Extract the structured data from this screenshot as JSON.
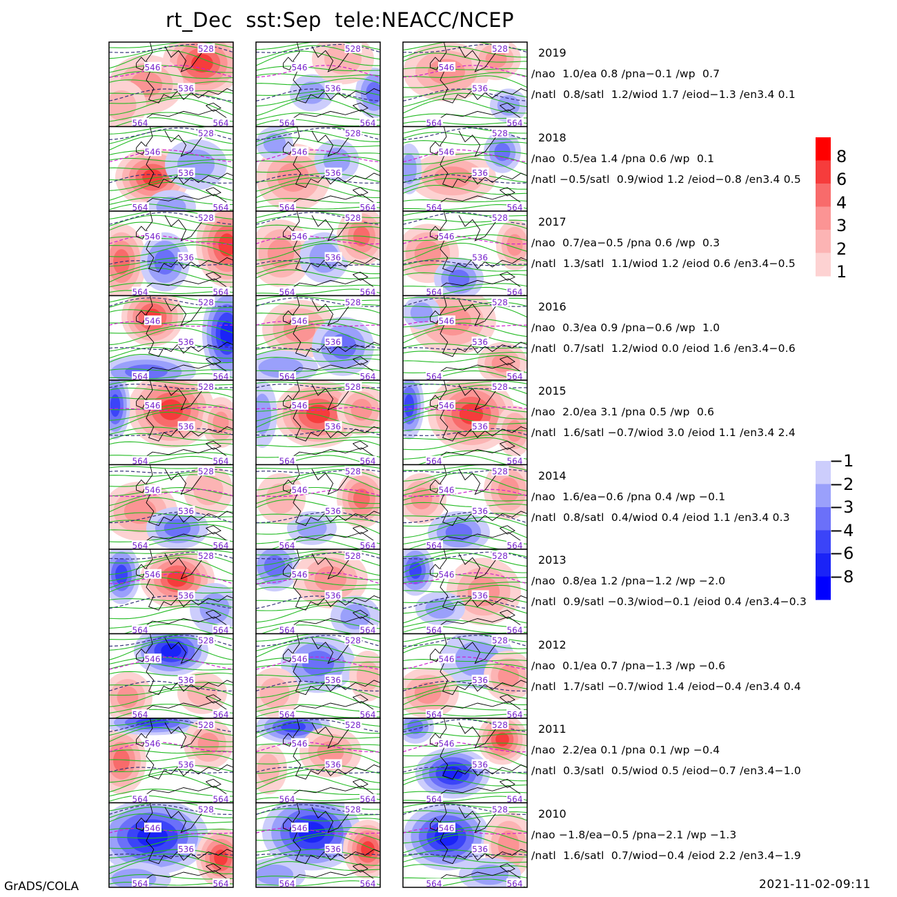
{
  "title": "rt_Dec  sst:Sep  tele:NEACC/NCEP",
  "footer_left": "GrADS/COLA",
  "footer_right": "2021-11-02-09:11",
  "contour_labels": [
    "528",
    "536",
    "546",
    "564"
  ],
  "colors": {
    "pos": [
      "#fdd2d2",
      "#fcb4b4",
      "#fb9494",
      "#f86b6b",
      "#f63c3c",
      "#ff0000"
    ],
    "neg": [
      "#cccdfc",
      "#9aa0fb",
      "#6b70f9",
      "#3b44f8",
      "#1a23f7",
      "#0000ff"
    ],
    "contour_green": "#22bb22",
    "contour_navy": "#333377",
    "contour_magenta": "#cc22cc",
    "coast": "#000000"
  },
  "colorbar": {
    "positive_labels": [
      "8",
      "6",
      "4",
      "3",
      "2",
      "1"
    ],
    "negative_labels": [
      "-1",
      "-2",
      "-3",
      "-4",
      "-6",
      "-8"
    ]
  },
  "rows": [
    {
      "year": "2019",
      "line1": "/nao  1.0/ea 0.8 /pna-0.1 /wp  0.7",
      "line2": "/natl  0.8/satl  1.2/wiod 1.7 /eiod-1.3 /en3.4 0.1"
    },
    {
      "year": "2018",
      "line1": "/nao  0.5/ea 1.4 /pna 0.6 /wp  0.1",
      "line2": "/natl -0.5/satl  0.9/wiod 1.2 /eiod-0.8 /en3.4 0.5"
    },
    {
      "year": "2017",
      "line1": "/nao  0.7/ea-0.5 /pna 0.6 /wp  0.3",
      "line2": "/natl  1.3/satl  1.1/wiod 1.2 /eiod 0.6 /en3.4-0.5"
    },
    {
      "year": "2016",
      "line1": "/nao  0.3/ea 0.9 /pna-0.6 /wp  1.0",
      "line2": "/natl  0.7/satl  1.2/wiod 0.0 /eiod 1.6 /en3.4-0.6"
    },
    {
      "year": "2015",
      "line1": "/nao  2.0/ea 3.1 /pna 0.5 /wp  0.6",
      "line2": "/natl  1.6/satl -0.7/wiod 3.0 /eiod 1.1 /en3.4 2.4"
    },
    {
      "year": "2014",
      "line1": "/nao  1.6/ea-0.6 /pna 0.4 /wp -0.1",
      "line2": "/natl  0.8/satl  0.4/wiod 0.4 /eiod 1.1 /en3.4 0.3"
    },
    {
      "year": "2013",
      "line1": "/nao  0.8/ea 1.2 /pna-1.2 /wp -2.0",
      "line2": "/natl  0.9/satl -0.3/wiod-0.1 /eiod 0.4 /en3.4-0.3"
    },
    {
      "year": "2012",
      "line1": "/nao  0.1/ea 0.7 /pna-1.3 /wp -0.6",
      "line2": "/natl  1.7/satl -0.7/wiod 1.4 /eiod-0.4 /en3.4 0.4"
    },
    {
      "year": "2011",
      "line1": "/nao  2.2/ea 0.1 /pna 0.1 /wp -0.4",
      "line2": "/natl  0.3/satl  0.5/wiod 0.5 /eiod-0.7 /en3.4-1.0"
    },
    {
      "year": "2010",
      "line1": "/nao -1.8/ea-0.5 /pna-2.1 /wp -1.3",
      "line2": "/natl  1.6/satl  0.7/wiod-0.4 /eiod 2.2 /en3.4-1.9"
    }
  ],
  "anomaly_blobs": [
    [
      [
        [
          0.75,
          0.25,
          0.32,
          0.4,
          6
        ],
        [
          0.3,
          0.5,
          0.3,
          0.35,
          3
        ],
        [
          0.1,
          0.75,
          0.2,
          0.3,
          2
        ]
      ],
      [
        [
          0.45,
          0.6,
          0.18,
          0.22,
          -2
        ],
        [
          0.95,
          0.6,
          0.15,
          0.3,
          -3
        ],
        [
          0.7,
          0.2,
          0.25,
          0.3,
          2
        ]
      ],
      [
        [
          0.35,
          0.35,
          0.35,
          0.35,
          3
        ],
        [
          0.75,
          0.2,
          0.2,
          0.25,
          3
        ],
        [
          0.85,
          0.75,
          0.15,
          0.2,
          -2
        ]
      ]
    ],
    [
      [
        [
          0.35,
          0.6,
          0.3,
          0.35,
          6
        ],
        [
          0.7,
          0.45,
          0.25,
          0.3,
          -2
        ],
        [
          0.5,
          0.95,
          0.2,
          0.2,
          -2
        ]
      ],
      [
        [
          0.3,
          0.6,
          0.3,
          0.4,
          3
        ],
        [
          0.65,
          0.4,
          0.18,
          0.25,
          -2
        ],
        [
          0.15,
          0.2,
          0.15,
          0.2,
          -2
        ]
      ],
      [
        [
          0.4,
          0.6,
          0.35,
          0.3,
          3
        ],
        [
          0.8,
          0.3,
          0.15,
          0.25,
          -3
        ],
        [
          0.05,
          0.5,
          0.1,
          0.3,
          -2
        ]
      ]
    ],
    [
      [
        [
          0.1,
          0.6,
          0.2,
          0.45,
          4
        ],
        [
          0.45,
          0.6,
          0.2,
          0.35,
          -3
        ],
        [
          0.95,
          0.4,
          0.25,
          0.5,
          6
        ]
      ],
      [
        [
          0.2,
          0.5,
          0.25,
          0.4,
          3
        ],
        [
          0.55,
          0.55,
          0.2,
          0.3,
          -2
        ],
        [
          0.85,
          0.3,
          0.2,
          0.35,
          4
        ]
      ],
      [
        [
          0.2,
          0.5,
          0.25,
          0.35,
          3
        ],
        [
          0.45,
          0.8,
          0.2,
          0.25,
          -3
        ],
        [
          0.9,
          0.4,
          0.15,
          0.3,
          3
        ]
      ]
    ],
    [
      [
        [
          0.35,
          0.25,
          0.25,
          0.35,
          6
        ],
        [
          0.95,
          0.45,
          0.2,
          0.55,
          -6
        ],
        [
          0.3,
          0.9,
          0.4,
          0.2,
          -3
        ]
      ],
      [
        [
          0.35,
          0.4,
          0.3,
          0.35,
          3
        ],
        [
          0.7,
          0.6,
          0.25,
          0.35,
          -3
        ],
        [
          0.2,
          0.85,
          0.3,
          0.2,
          -2
        ]
      ],
      [
        [
          0.4,
          0.3,
          0.35,
          0.4,
          3
        ],
        [
          0.8,
          0.8,
          0.2,
          0.25,
          3
        ],
        [
          0.15,
          0.2,
          0.15,
          0.2,
          -2
        ]
      ]
    ],
    [
      [
        [
          0.5,
          0.35,
          0.35,
          0.45,
          6
        ],
        [
          0.05,
          0.3,
          0.12,
          0.4,
          -4
        ],
        [
          0.9,
          0.5,
          0.15,
          0.3,
          3
        ]
      ],
      [
        [
          0.5,
          0.4,
          0.35,
          0.4,
          6
        ],
        [
          0.05,
          0.4,
          0.12,
          0.4,
          -2
        ],
        [
          0.85,
          0.35,
          0.2,
          0.3,
          3
        ]
      ],
      [
        [
          0.55,
          0.4,
          0.35,
          0.45,
          6
        ],
        [
          0.05,
          0.3,
          0.12,
          0.4,
          -4
        ],
        [
          0.9,
          0.6,
          0.15,
          0.3,
          3
        ]
      ]
    ],
    [
      [
        [
          0.25,
          0.55,
          0.3,
          0.35,
          3
        ],
        [
          0.55,
          0.75,
          0.25,
          0.25,
          -3
        ],
        [
          0.8,
          0.3,
          0.2,
          0.3,
          2
        ]
      ],
      [
        [
          0.85,
          0.4,
          0.2,
          0.35,
          4
        ],
        [
          0.45,
          0.75,
          0.2,
          0.2,
          -2
        ],
        [
          0.2,
          0.4,
          0.2,
          0.3,
          2
        ]
      ],
      [
        [
          0.15,
          0.4,
          0.2,
          0.3,
          3
        ],
        [
          0.45,
          0.8,
          0.25,
          0.25,
          -3
        ],
        [
          0.85,
          0.3,
          0.2,
          0.35,
          3
        ]
      ]
    ],
    [
      [
        [
          0.1,
          0.3,
          0.15,
          0.35,
          -4
        ],
        [
          0.55,
          0.35,
          0.3,
          0.35,
          6
        ],
        [
          0.85,
          0.7,
          0.2,
          0.3,
          -2
        ]
      ],
      [
        [
          0.15,
          0.2,
          0.2,
          0.3,
          -3
        ],
        [
          0.6,
          0.35,
          0.3,
          0.35,
          3
        ],
        [
          0.8,
          0.8,
          0.2,
          0.25,
          -2
        ]
      ],
      [
        [
          0.1,
          0.25,
          0.15,
          0.3,
          -4
        ],
        [
          0.65,
          0.5,
          0.3,
          0.4,
          3
        ],
        [
          0.3,
          0.7,
          0.2,
          0.2,
          -2
        ]
      ]
    ],
    [
      [
        [
          0.5,
          0.2,
          0.3,
          0.3,
          -6
        ],
        [
          0.15,
          0.75,
          0.2,
          0.3,
          3
        ],
        [
          0.75,
          0.7,
          0.2,
          0.25,
          2
        ]
      ],
      [
        [
          0.5,
          0.35,
          0.3,
          0.35,
          -3
        ],
        [
          0.15,
          0.7,
          0.2,
          0.3,
          2
        ],
        [
          0.9,
          0.5,
          0.15,
          0.3,
          2
        ]
      ],
      [
        [
          0.6,
          0.3,
          0.3,
          0.35,
          -2
        ],
        [
          0.2,
          0.7,
          0.25,
          0.3,
          3
        ],
        [
          0.85,
          0.5,
          0.2,
          0.3,
          3
        ]
      ]
    ],
    [
      [
        [
          0.1,
          0.5,
          0.2,
          0.4,
          4
        ],
        [
          0.35,
          0.05,
          0.4,
          0.15,
          -4
        ],
        [
          0.8,
          0.3,
          0.2,
          0.3,
          3
        ]
      ],
      [
        [
          0.3,
          0.1,
          0.3,
          0.2,
          -4
        ],
        [
          0.6,
          0.4,
          0.25,
          0.3,
          3
        ],
        [
          0.1,
          0.6,
          0.15,
          0.3,
          2
        ]
      ],
      [
        [
          0.4,
          0.65,
          0.3,
          0.3,
          -6
        ],
        [
          0.8,
          0.25,
          0.2,
          0.3,
          6
        ],
        [
          0.1,
          0.1,
          0.15,
          0.2,
          -3
        ]
      ]
    ],
    [
      [
        [
          0.35,
          0.4,
          0.45,
          0.45,
          -6
        ],
        [
          0.9,
          0.65,
          0.2,
          0.35,
          6
        ],
        [
          0.2,
          0.9,
          0.3,
          0.2,
          -2
        ]
      ],
      [
        [
          0.45,
          0.35,
          0.4,
          0.45,
          -6
        ],
        [
          0.9,
          0.55,
          0.2,
          0.35,
          6
        ],
        [
          0.15,
          0.85,
          0.25,
          0.2,
          -2
        ]
      ],
      [
        [
          0.35,
          0.4,
          0.35,
          0.4,
          -6
        ],
        [
          0.85,
          0.5,
          0.2,
          0.4,
          3
        ],
        [
          0.7,
          0.85,
          0.25,
          0.2,
          -2
        ]
      ]
    ]
  ]
}
